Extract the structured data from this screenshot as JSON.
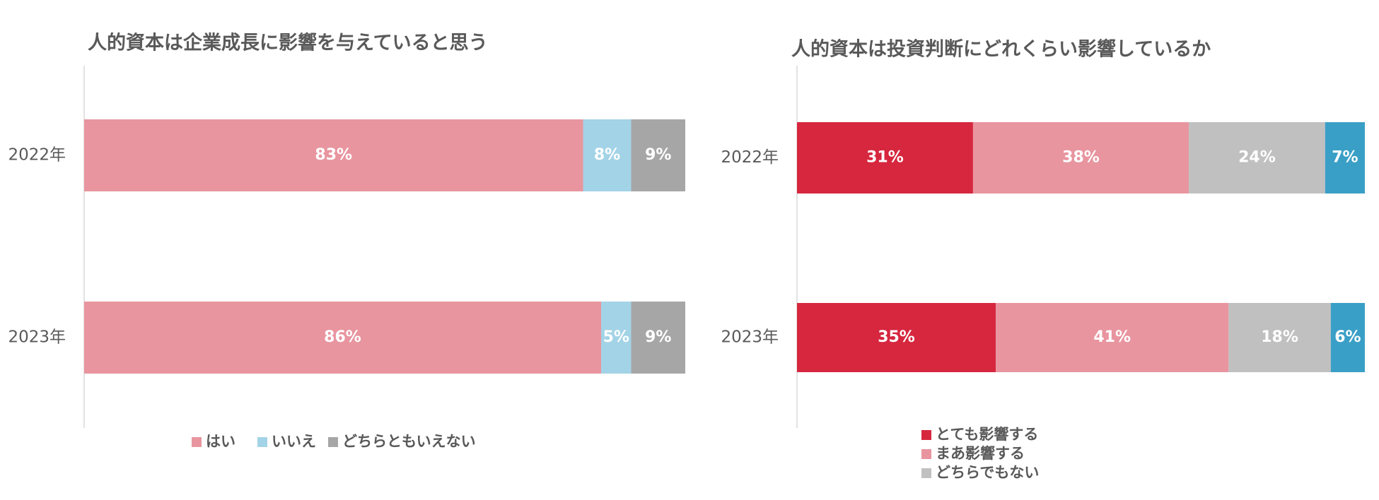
{
  "chart_data": [
    {
      "type": "stacked-bar",
      "title": "人的資本は企業成長に影響を与えていると思う",
      "categories": [
        "2022年",
        "2023年"
      ],
      "series": [
        {
          "name": "はい",
          "color": "#e8959f",
          "values": [
            83,
            86
          ],
          "value_labels": [
            "83%",
            "86%"
          ]
        },
        {
          "name": "いいえ",
          "color": "#a3d3e6",
          "values": [
            8,
            5
          ],
          "value_labels": [
            "8%",
            "5%"
          ]
        },
        {
          "name": "どちらともいえない",
          "color": "#a6a6a6",
          "values": [
            9,
            9
          ],
          "value_labels": [
            "9%",
            "9%"
          ]
        }
      ],
      "xlim": [
        0,
        100
      ],
      "legend": "bottom"
    },
    {
      "type": "stacked-bar",
      "title": "人的資本は投資判断にどれくらい影響しているか",
      "categories": [
        "2022年",
        "2023年"
      ],
      "series": [
        {
          "name": "とても影響する",
          "color": "#d6273f",
          "values": [
            31,
            35
          ],
          "value_labels": [
            "31%",
            "35%"
          ]
        },
        {
          "name": "まあ影響する",
          "color": "#e8959f",
          "values": [
            38,
            41
          ],
          "value_labels": [
            "38%",
            "41%"
          ]
        },
        {
          "name": "どちらでもない",
          "color": "#c0c0c0",
          "values": [
            24,
            18
          ],
          "value_labels": [
            "24%",
            "18%"
          ]
        },
        {
          "color": "#3a9fc6",
          "values": [
            7,
            6
          ],
          "value_labels": [
            "7%",
            "6%"
          ]
        }
      ],
      "xlim": [
        0,
        100
      ],
      "legend": "bottom"
    }
  ]
}
